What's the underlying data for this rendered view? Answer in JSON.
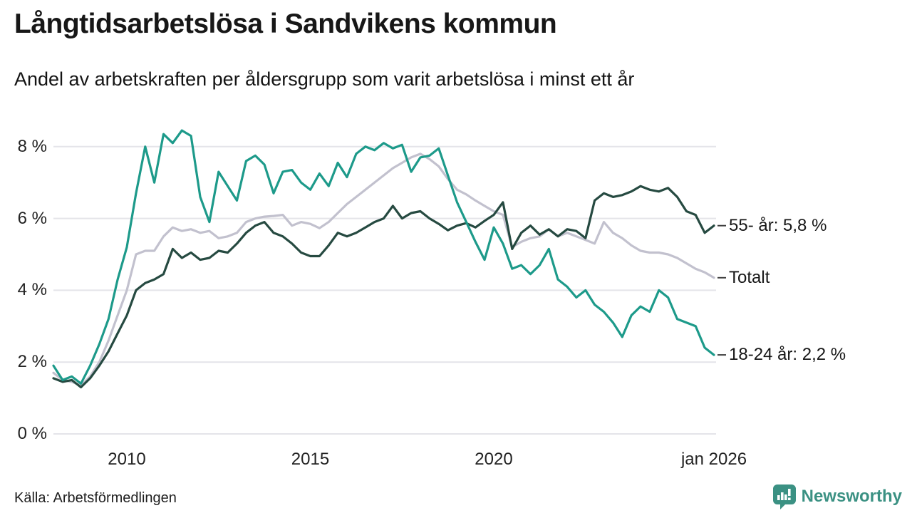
{
  "header": {
    "title": "Långtidsarbetslösa i Sandvikens kommun",
    "subtitle": "Andel av arbetskraften per åldersgrupp som varit arbetslösa i minst ett år"
  },
  "footer": {
    "source": "Källa: Arbetsförmedlingen",
    "brand": "Newsworthy"
  },
  "colors": {
    "accent_teal": "#1d9a8a",
    "dark_green": "#264a41",
    "light_gray": "#c2c1ce",
    "grid": "#e4e4e9",
    "brand": "#3b9183",
    "end_tick": "#3f3f3f"
  },
  "chart_data": {
    "type": "line",
    "title": "Långtidsarbetslösa i Sandvikens kommun",
    "subtitle": "Andel av arbetskraften per åldersgrupp som varit arbetslösa i minst ett år",
    "unit": "%",
    "grid": true,
    "legend_position": "right-end-labels",
    "ylim": [
      0,
      8.7
    ],
    "xlim": [
      2008,
      2026.05
    ],
    "ytick_values": [
      0,
      2,
      4,
      6,
      8
    ],
    "ytick_labels": [
      "0 %",
      "2 %",
      "4 %",
      "6 %",
      "8 %"
    ],
    "xticks": [
      {
        "t": 2010,
        "label": "2010"
      },
      {
        "t": 2015,
        "label": "2015"
      },
      {
        "t": 2020,
        "label": "2020"
      },
      {
        "t": 2026,
        "label": "jan 2026"
      }
    ],
    "x": [
      2008.0,
      2008.25,
      2008.5,
      2008.75,
      2009.0,
      2009.25,
      2009.5,
      2009.75,
      2010.0,
      2010.25,
      2010.5,
      2010.75,
      2011.0,
      2011.25,
      2011.5,
      2011.75,
      2012.0,
      2012.25,
      2012.5,
      2012.75,
      2013.0,
      2013.25,
      2013.5,
      2013.75,
      2014.0,
      2014.25,
      2014.5,
      2014.75,
      2015.0,
      2015.25,
      2015.5,
      2015.75,
      2016.0,
      2016.25,
      2016.5,
      2016.75,
      2017.0,
      2017.25,
      2017.5,
      2017.75,
      2018.0,
      2018.25,
      2018.5,
      2018.75,
      2019.0,
      2019.25,
      2019.5,
      2019.75,
      2020.0,
      2020.25,
      2020.5,
      2020.75,
      2021.0,
      2021.25,
      2021.5,
      2021.75,
      2022.0,
      2022.25,
      2022.5,
      2022.75,
      2023.0,
      2023.25,
      2023.5,
      2023.75,
      2024.0,
      2024.25,
      2024.5,
      2024.75,
      2025.0,
      2025.25,
      2025.5,
      2025.75,
      2026.0
    ],
    "series": [
      {
        "id": "totalt",
        "name": "Totalt",
        "end_label": "Totalt",
        "color": "#c2c1ce",
        "values": [
          1.7,
          1.5,
          1.45,
          1.35,
          1.6,
          2.0,
          2.6,
          3.3,
          4.0,
          5.0,
          5.1,
          5.1,
          5.5,
          5.75,
          5.65,
          5.7,
          5.6,
          5.65,
          5.45,
          5.5,
          5.6,
          5.9,
          6.0,
          6.05,
          6.07,
          6.1,
          5.8,
          5.9,
          5.85,
          5.73,
          5.9,
          6.15,
          6.4,
          6.6,
          6.8,
          7.0,
          7.2,
          7.4,
          7.55,
          7.7,
          7.8,
          7.65,
          7.45,
          7.1,
          6.8,
          6.67,
          6.5,
          6.35,
          6.2,
          6.1,
          5.2,
          5.35,
          5.45,
          5.5,
          5.7,
          5.5,
          5.6,
          5.5,
          5.4,
          5.3,
          5.9,
          5.6,
          5.45,
          5.25,
          5.1,
          5.05,
          5.05,
          5.0,
          4.9,
          4.75,
          4.6,
          4.5,
          4.35
        ]
      },
      {
        "id": "55-ar",
        "name": "55- år",
        "end_label": "55- år: 5,8 %",
        "color": "#264a41",
        "values": [
          1.55,
          1.45,
          1.5,
          1.3,
          1.55,
          1.9,
          2.3,
          2.8,
          3.3,
          4.0,
          4.2,
          4.3,
          4.45,
          5.15,
          4.9,
          5.05,
          4.85,
          4.9,
          5.1,
          5.05,
          5.3,
          5.6,
          5.8,
          5.9,
          5.6,
          5.5,
          5.3,
          5.05,
          4.95,
          4.95,
          5.25,
          5.6,
          5.5,
          5.6,
          5.75,
          5.9,
          6.0,
          6.35,
          6.0,
          6.15,
          6.2,
          6.0,
          5.85,
          5.67,
          5.8,
          5.87,
          5.75,
          5.93,
          6.1,
          6.45,
          5.15,
          5.6,
          5.8,
          5.55,
          5.7,
          5.5,
          5.7,
          5.65,
          5.45,
          6.5,
          6.7,
          6.6,
          6.65,
          6.75,
          6.9,
          6.8,
          6.75,
          6.85,
          6.6,
          6.2,
          6.1,
          5.6,
          5.8
        ]
      },
      {
        "id": "18-24-ar",
        "name": "18-24 år",
        "end_label": "18-24 år: 2,2 %",
        "color": "#1d9a8a",
        "values": [
          1.9,
          1.5,
          1.6,
          1.4,
          1.9,
          2.5,
          3.2,
          4.3,
          5.2,
          6.7,
          8.0,
          7.0,
          8.35,
          8.1,
          8.45,
          8.3,
          6.6,
          5.9,
          7.3,
          6.9,
          6.5,
          7.6,
          7.75,
          7.5,
          6.7,
          7.3,
          7.35,
          7.0,
          6.8,
          7.25,
          6.9,
          7.55,
          7.15,
          7.8,
          8.0,
          7.9,
          8.1,
          7.95,
          8.05,
          7.3,
          7.7,
          7.75,
          7.95,
          7.2,
          6.45,
          5.9,
          5.35,
          4.85,
          5.75,
          5.3,
          4.6,
          4.7,
          4.45,
          4.7,
          5.15,
          4.3,
          4.1,
          3.8,
          4.0,
          3.6,
          3.4,
          3.1,
          2.7,
          3.3,
          3.55,
          3.4,
          4.0,
          3.8,
          3.2,
          3.1,
          3.0,
          2.4,
          2.2
        ]
      }
    ]
  }
}
